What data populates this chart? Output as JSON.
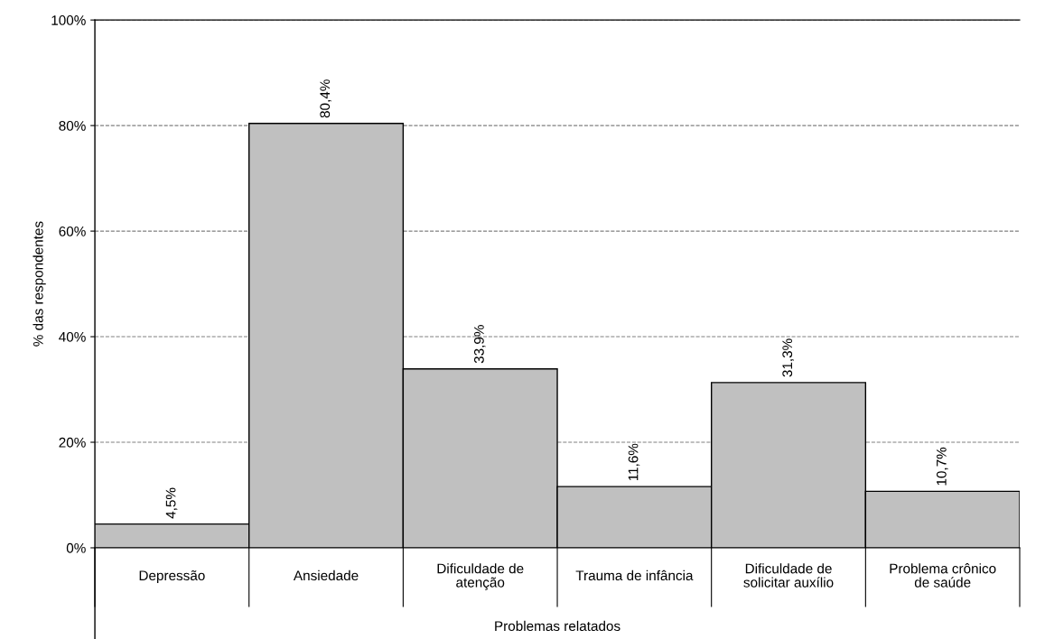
{
  "chart_data": {
    "type": "bar",
    "xlabel": "Problemas relatados",
    "ylabel": "% das respondentes",
    "categories": [
      "Depressão",
      "Ansiedade",
      "Dificuldade de\natenção",
      "Trauma de infância",
      "Dificuldade de\nsolicitar auxílio",
      "Problema crônico\nde saúde"
    ],
    "values": [
      4.5,
      80.4,
      33.9,
      11.6,
      31.3,
      10.7
    ],
    "value_labels": [
      "4,5%",
      "80,4%",
      "33,9%",
      "11,6%",
      "31,3%",
      "10,7%"
    ],
    "color": "#c0c0c0",
    "ylim": [
      0,
      100
    ],
    "yticks": [
      {
        "value": 0,
        "label": "0%"
      },
      {
        "value": 20,
        "label": "20%"
      },
      {
        "value": 40,
        "label": "40%"
      },
      {
        "value": 60,
        "label": "60%"
      },
      {
        "value": 80,
        "label": "80%"
      },
      {
        "value": 100,
        "label": "100%"
      }
    ],
    "grid": "y",
    "line_style": "dashed"
  }
}
